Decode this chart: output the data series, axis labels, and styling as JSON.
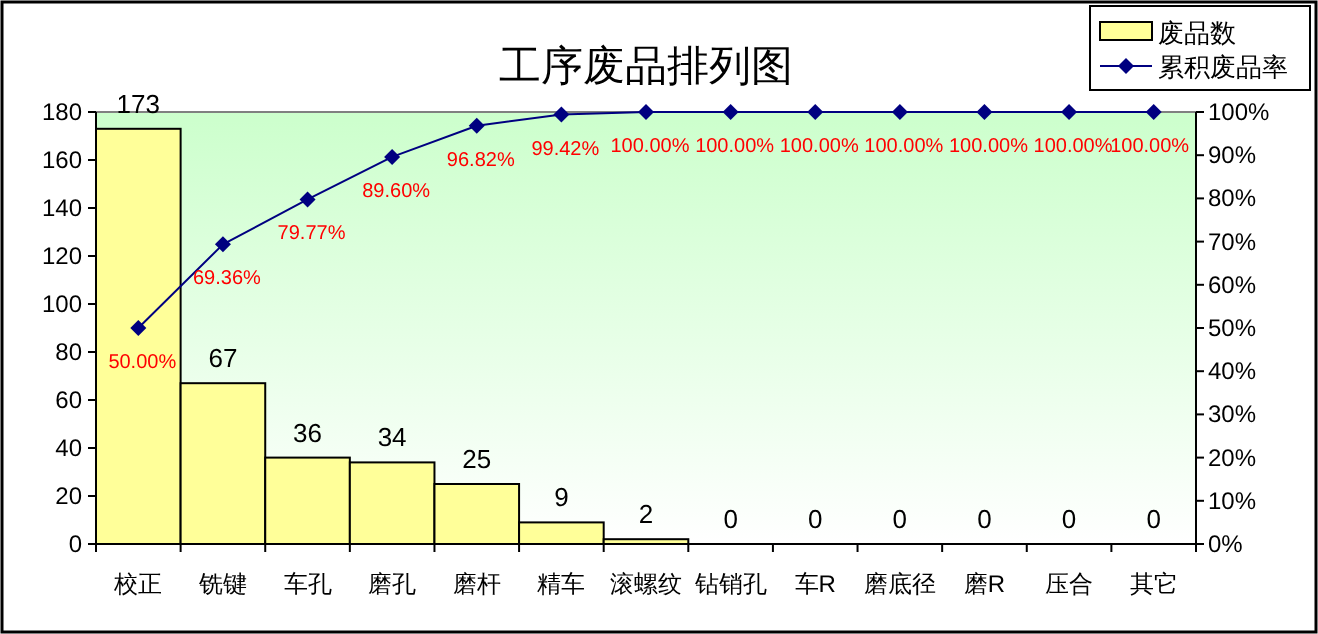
{
  "chart_data": {
    "type": "bar",
    "title": "工序废品排列图",
    "categories": [
      "校正",
      "铣键",
      "车孔",
      "磨孔",
      "磨杆",
      "精车",
      "滚螺纹",
      "钻销孔",
      "车R",
      "磨底径",
      "磨R",
      "压合",
      "其它"
    ],
    "series": [
      {
        "name": "废品数",
        "color": "#ffff99",
        "values": [
          173,
          67,
          36,
          34,
          25,
          9,
          2,
          0,
          0,
          0,
          0,
          0,
          0
        ],
        "value_labels": [
          "173",
          "67",
          "36",
          "34",
          "25",
          "9",
          "2",
          "0",
          "0",
          "0",
          "0",
          "0",
          "0"
        ]
      },
      {
        "name": "累积废品率",
        "type": "line",
        "axis": "y2",
        "color": "#000080",
        "marker": "diamond",
        "values": [
          50.0,
          69.36,
          79.77,
          89.6,
          96.82,
          99.42,
          100,
          100,
          100,
          100,
          100,
          100,
          100
        ],
        "value_labels": [
          "50.00%",
          "69.36%",
          "79.77%",
          "89.60%",
          "96.82%",
          "99.42%",
          "100.00%",
          "100.00%",
          "100.00%",
          "100.00%",
          "100.00%",
          "100.00%",
          "100.00%"
        ]
      }
    ],
    "ylim": [
      0,
      180
    ],
    "yticks": [
      0,
      20,
      40,
      60,
      80,
      100,
      120,
      140,
      160,
      180
    ],
    "y2lim": [
      0,
      100
    ],
    "y2ticks": [
      {
        "value": 0,
        "label": "0%"
      },
      {
        "value": 10,
        "label": "10%"
      },
      {
        "value": 20,
        "label": "20%"
      },
      {
        "value": 30,
        "label": "30%"
      },
      {
        "value": 40,
        "label": "40%"
      },
      {
        "value": 50,
        "label": "50%"
      },
      {
        "value": 60,
        "label": "60%"
      },
      {
        "value": 70,
        "label": "70%"
      },
      {
        "value": 80,
        "label": "80%"
      },
      {
        "value": 90,
        "label": "90%"
      },
      {
        "value": 100,
        "label": "100%"
      }
    ],
    "legend": "top right",
    "grid": false
  }
}
